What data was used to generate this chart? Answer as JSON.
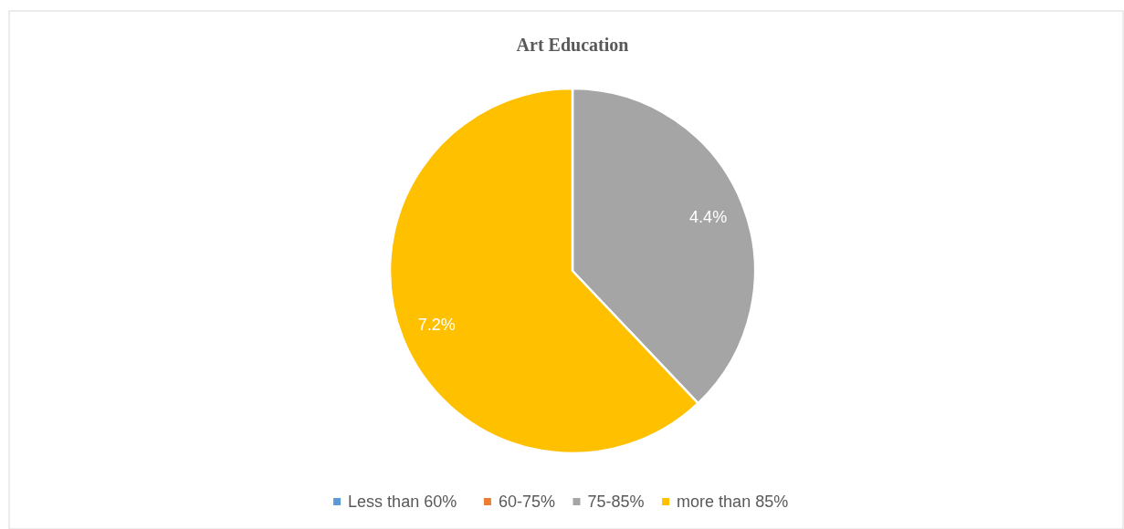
{
  "chart_data": {
    "type": "pie",
    "title": "Art Education",
    "categories": [
      "Less than 60%",
      "60-75%",
      "75-85%",
      "more than 85%"
    ],
    "values": [
      0,
      0,
      4.4,
      7.2
    ],
    "colors": [
      "#5b9bd5",
      "#ed7d31",
      "#a5a5a5",
      "#ffc000"
    ],
    "value_labels": [
      null,
      null,
      "4.4%",
      "7.2%"
    ],
    "legend": "bottom"
  }
}
